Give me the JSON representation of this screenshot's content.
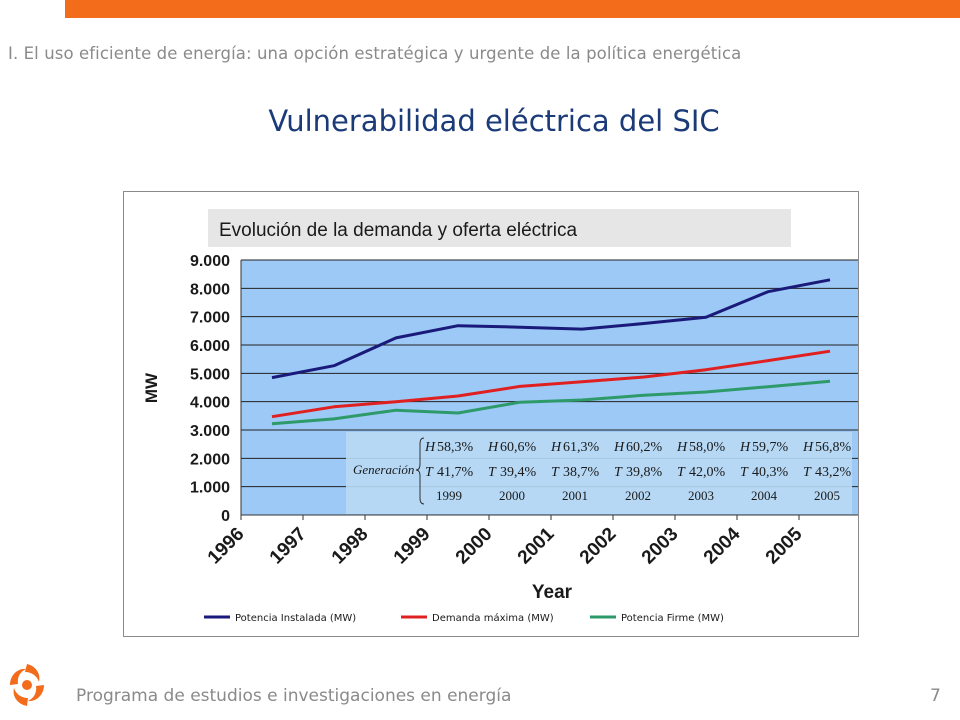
{
  "slide": {
    "subtitle": "I. El uso eficiente de energía: una opción estratégica y urgente de la política energética",
    "title": "Vulnerabilidad eléctrica del SIC",
    "footer": "Programa de estudios e investigaciones en energía",
    "page_number": "7",
    "accent_color": "#f26c1c",
    "title_color": "#1a3a78",
    "logo_icon": "orange-swirl-logo-icon"
  },
  "chart_data": {
    "type": "line",
    "title": "Evolución de la demanda y oferta eléctrica",
    "xlabel": "Year",
    "ylabel": "MW",
    "ylim": [
      0,
      9000
    ],
    "yticks": [
      0,
      1000,
      2000,
      3000,
      4000,
      5000,
      6000,
      7000,
      8000,
      9000
    ],
    "ytick_labels": [
      "0",
      "1.000",
      "2.000",
      "3.000",
      "4.000",
      "5.000",
      "6.000",
      "7.000",
      "8.000",
      "9.000"
    ],
    "x_categories": [
      "1996",
      "1997",
      "1998",
      "1999",
      "2000",
      "2001",
      "2002",
      "2003",
      "2004",
      "2005"
    ],
    "grid": true,
    "legend_position": "bottom",
    "series": [
      {
        "name": "Potencia Instalada (MW)",
        "color": "#1a1a7a",
        "x": [
          1996.5,
          1997.5,
          1998.5,
          1999.5,
          2000.5,
          2001.5,
          2002.5,
          2003.5,
          2004.5,
          2005.5
        ],
        "values": [
          4850,
          5270,
          6250,
          6680,
          6630,
          6560,
          6760,
          6980,
          7880,
          8300
        ]
      },
      {
        "name": "Demanda máxima (MW)",
        "color": "#e02020",
        "x": [
          1996.5,
          1997.5,
          1998.5,
          1999.5,
          2000.5,
          2001.5,
          2002.5,
          2003.5,
          2004.5,
          2005.5
        ],
        "values": [
          3470,
          3820,
          4000,
          4200,
          4540,
          4700,
          4870,
          5130,
          5450,
          5780
        ]
      },
      {
        "name": "Potencia Firme (MW)",
        "color": "#2e9a6a",
        "x": [
          1996.5,
          1997.5,
          1998.5,
          1999.5,
          2000.5,
          2001.5,
          2002.5,
          2003.5,
          2004.5,
          2005.5
        ],
        "values": [
          3220,
          3390,
          3700,
          3600,
          3980,
          4060,
          4230,
          4340,
          4530,
          4720
        ]
      }
    ],
    "annotation_table": {
      "row_label": "Generación",
      "hydro_prefix": "H",
      "thermal_prefix": "T",
      "hydro": [
        "58,3%",
        "60,6%",
        "61,3%",
        "60,2%",
        "58,0%",
        "59,7%",
        "56,8%"
      ],
      "thermal": [
        "41,7%",
        "39,4%",
        "38,7%",
        "39,8%",
        "42,0%",
        "40,3%",
        "43,2%"
      ],
      "years": [
        "1999",
        "2000",
        "2001",
        "2002",
        "2003",
        "2004",
        "2005"
      ]
    }
  }
}
